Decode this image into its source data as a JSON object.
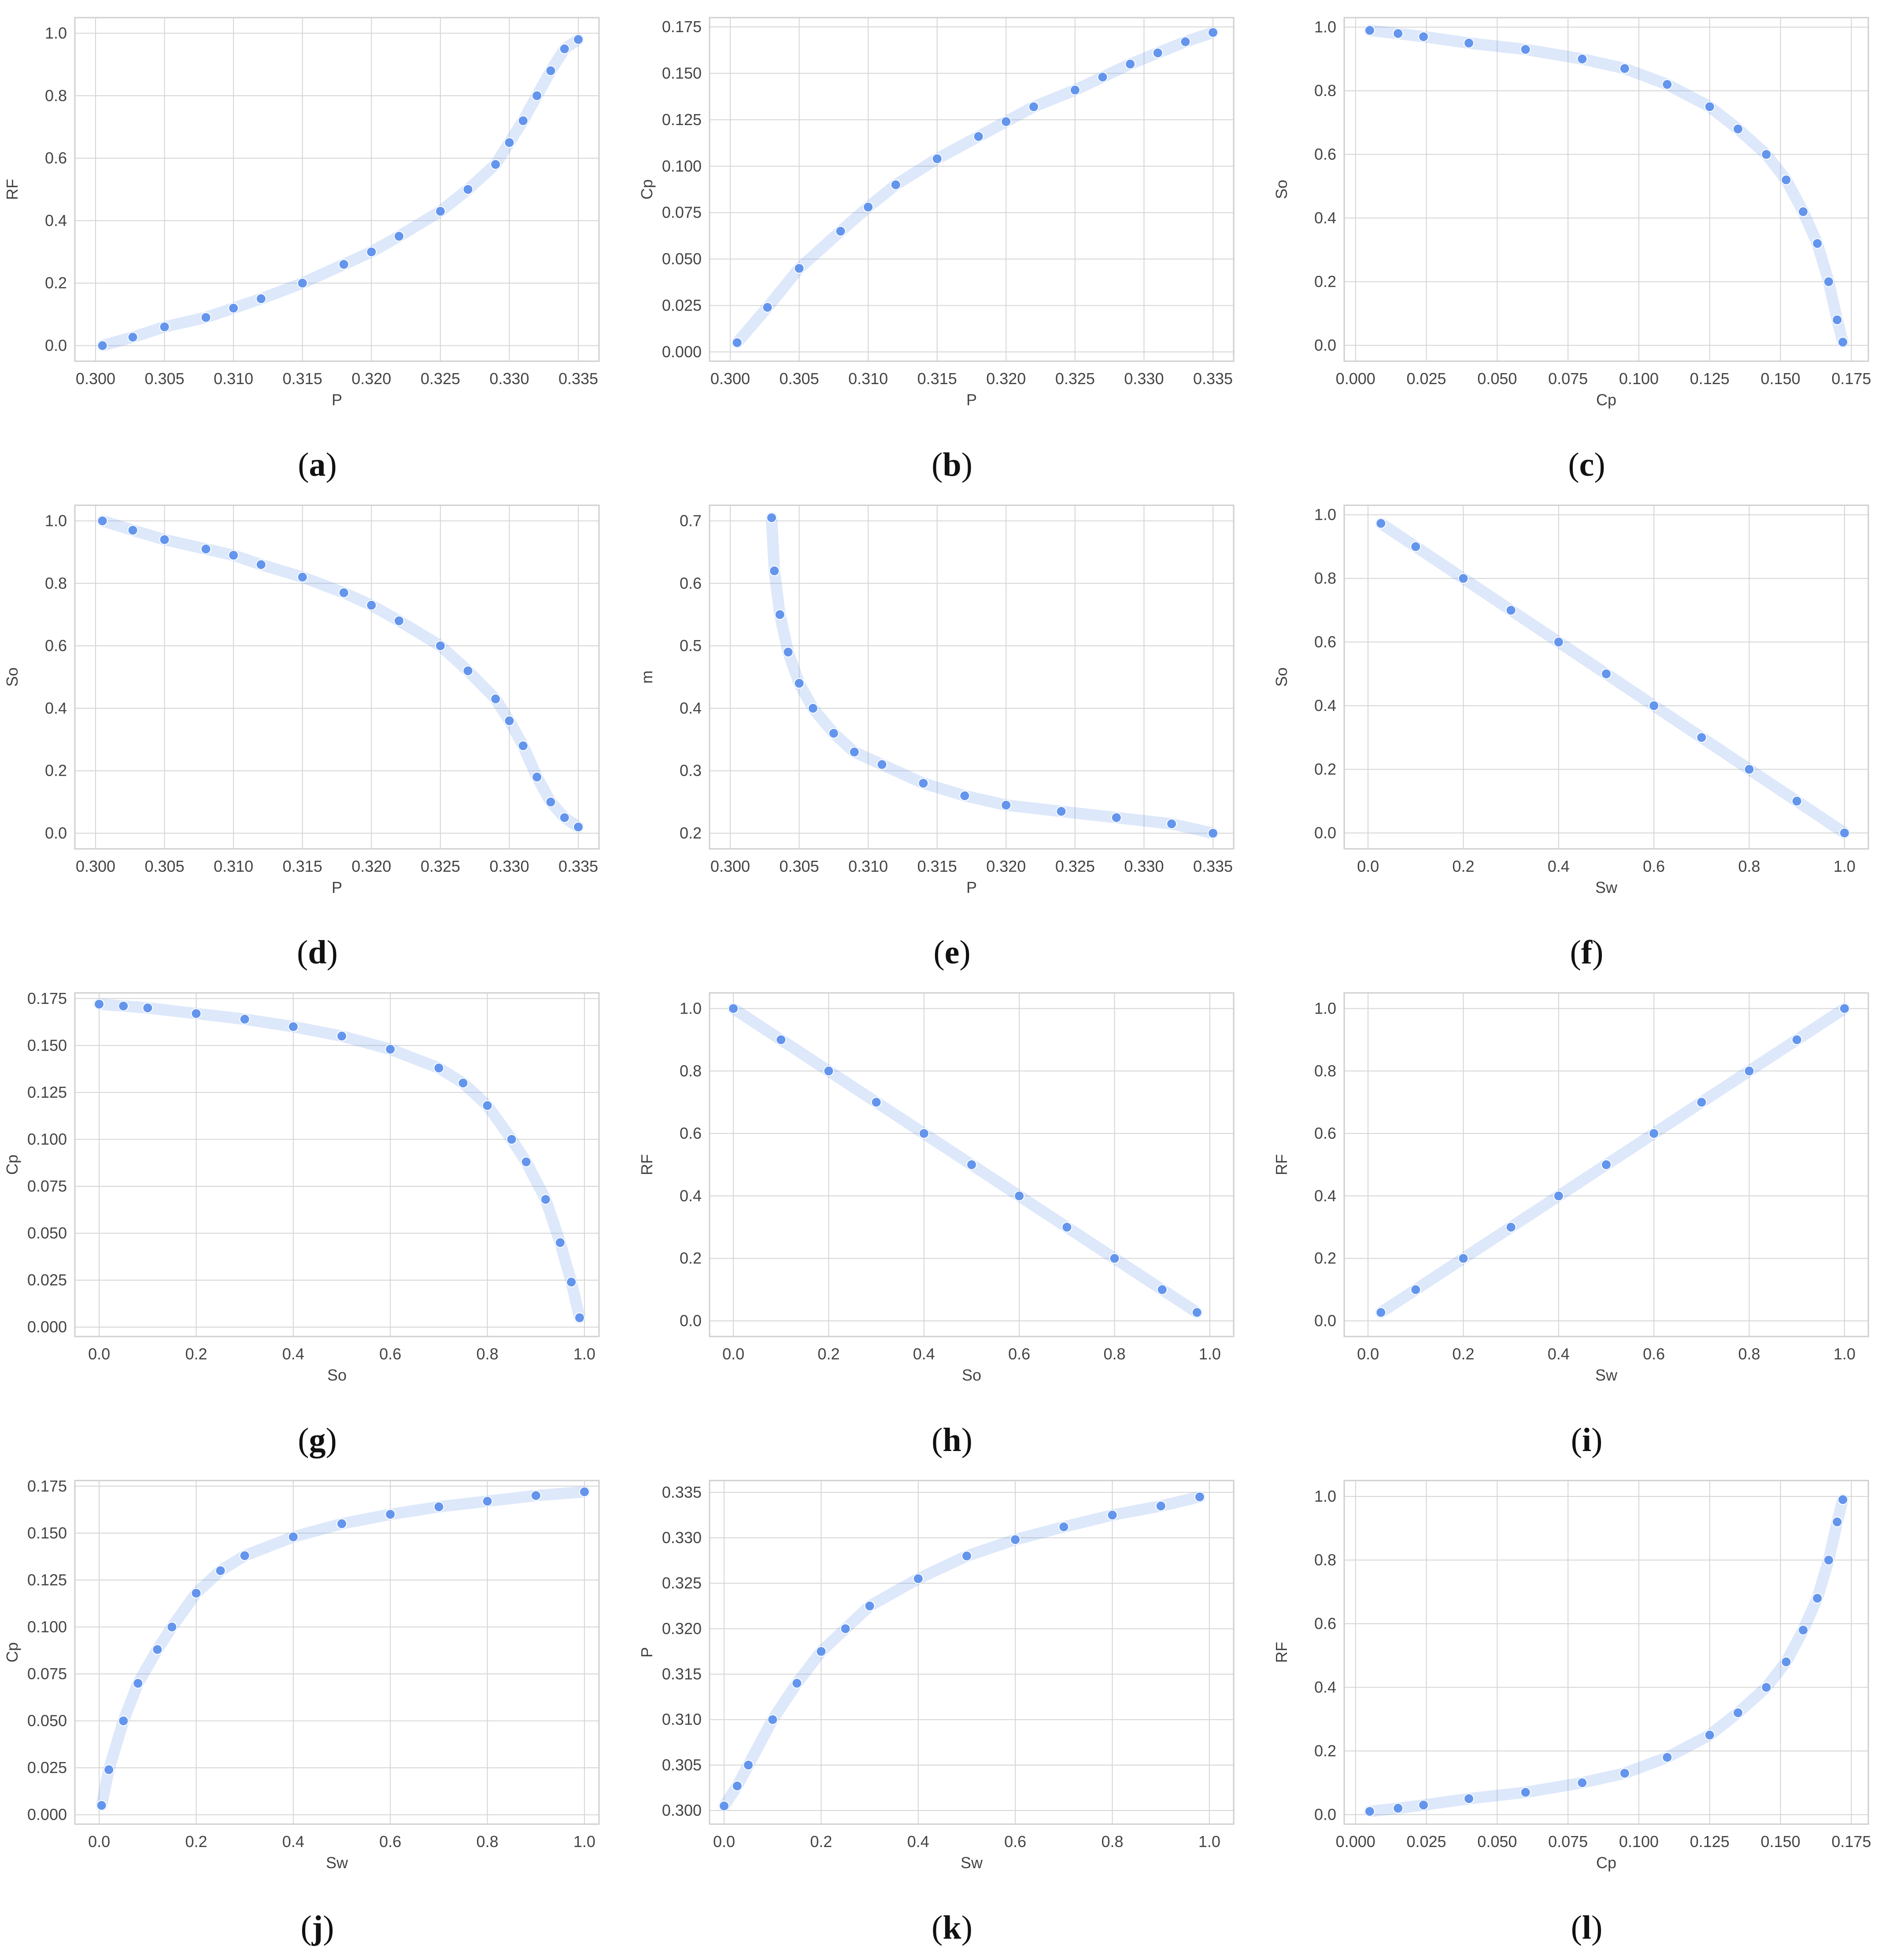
{
  "style": {
    "marker_color": "#6495ED",
    "grid_color": "#d5d5d5",
    "frame_color": "#cfcfcf",
    "text_color": "#444444"
  },
  "chart_data": [
    {
      "id": "a",
      "label_letter": "a",
      "type": "scatter",
      "xlabel": "P",
      "ylabel": "RF",
      "xlim": [
        0.2985,
        0.3365
      ],
      "ylim": [
        -0.05,
        1.05
      ],
      "xticks": [
        "0.300",
        "0.305",
        "0.310",
        "0.315",
        "0.320",
        "0.325",
        "0.330",
        "0.335"
      ],
      "yticks": [
        "0.0",
        "0.2",
        "0.4",
        "0.6",
        "0.8",
        "1.0"
      ],
      "x": [
        0.3005,
        0.3027,
        0.305,
        0.308,
        0.31,
        0.312,
        0.315,
        0.318,
        0.32,
        0.322,
        0.325,
        0.327,
        0.329,
        0.33,
        0.331,
        0.332,
        0.333,
        0.334,
        0.335
      ],
      "y": [
        0.0,
        0.027,
        0.06,
        0.09,
        0.12,
        0.15,
        0.2,
        0.26,
        0.3,
        0.35,
        0.43,
        0.5,
        0.58,
        0.65,
        0.72,
        0.8,
        0.88,
        0.95,
        0.98
      ]
    },
    {
      "id": "b",
      "label_letter": "b",
      "type": "scatter",
      "xlabel": "P",
      "ylabel": "Cp",
      "xlim": [
        0.2985,
        0.3365
      ],
      "ylim": [
        -0.005,
        0.18
      ],
      "xticks": [
        "0.300",
        "0.305",
        "0.310",
        "0.315",
        "0.320",
        "0.325",
        "0.330",
        "0.335"
      ],
      "yticks": [
        "0.000",
        "0.025",
        "0.050",
        "0.075",
        "0.100",
        "0.125",
        "0.150",
        "0.175"
      ],
      "x": [
        0.3005,
        0.3027,
        0.305,
        0.308,
        0.31,
        0.312,
        0.315,
        0.318,
        0.32,
        0.322,
        0.325,
        0.327,
        0.329,
        0.331,
        0.333,
        0.335
      ],
      "y": [
        0.005,
        0.024,
        0.045,
        0.065,
        0.078,
        0.09,
        0.104,
        0.116,
        0.124,
        0.132,
        0.141,
        0.148,
        0.155,
        0.161,
        0.167,
        0.172
      ]
    },
    {
      "id": "c",
      "label_letter": "c",
      "type": "scatter",
      "xlabel": "Cp",
      "ylabel": "So",
      "xlim": [
        -0.004,
        0.181
      ],
      "ylim": [
        -0.05,
        1.03
      ],
      "xticks": [
        "0.000",
        "0.025",
        "0.050",
        "0.075",
        "0.100",
        "0.125",
        "0.150",
        "0.175"
      ],
      "yticks": [
        "0.0",
        "0.2",
        "0.4",
        "0.6",
        "0.8",
        "1.0"
      ],
      "x": [
        0.005,
        0.015,
        0.024,
        0.04,
        0.06,
        0.08,
        0.095,
        0.11,
        0.125,
        0.135,
        0.145,
        0.152,
        0.158,
        0.163,
        0.167,
        0.17,
        0.172
      ],
      "y": [
        0.99,
        0.98,
        0.97,
        0.95,
        0.93,
        0.9,
        0.87,
        0.82,
        0.75,
        0.68,
        0.6,
        0.52,
        0.42,
        0.32,
        0.2,
        0.08,
        0.01
      ]
    },
    {
      "id": "d",
      "label_letter": "d",
      "type": "scatter",
      "xlabel": "P",
      "ylabel": "So",
      "xlim": [
        0.2985,
        0.3365
      ],
      "ylim": [
        -0.05,
        1.05
      ],
      "xticks": [
        "0.300",
        "0.305",
        "0.310",
        "0.315",
        "0.320",
        "0.325",
        "0.330",
        "0.335"
      ],
      "yticks": [
        "0.0",
        "0.2",
        "0.4",
        "0.6",
        "0.8",
        "1.0"
      ],
      "x": [
        0.3005,
        0.3027,
        0.305,
        0.308,
        0.31,
        0.312,
        0.315,
        0.318,
        0.32,
        0.322,
        0.325,
        0.327,
        0.329,
        0.33,
        0.331,
        0.332,
        0.333,
        0.334,
        0.335
      ],
      "y": [
        1.0,
        0.97,
        0.94,
        0.91,
        0.89,
        0.86,
        0.82,
        0.77,
        0.73,
        0.68,
        0.6,
        0.52,
        0.43,
        0.36,
        0.28,
        0.18,
        0.1,
        0.05,
        0.02
      ]
    },
    {
      "id": "e",
      "label_letter": "e",
      "type": "scatter",
      "xlabel": "P",
      "ylabel": "m",
      "xlim": [
        0.2985,
        0.3365
      ],
      "ylim": [
        0.175,
        0.725
      ],
      "xticks": [
        "0.300",
        "0.305",
        "0.310",
        "0.315",
        "0.320",
        "0.325",
        "0.330",
        "0.335"
      ],
      "yticks": [
        "0.2",
        "0.3",
        "0.4",
        "0.5",
        "0.6",
        "0.7"
      ],
      "x": [
        0.303,
        0.3032,
        0.3036,
        0.3042,
        0.305,
        0.306,
        0.3075,
        0.309,
        0.311,
        0.314,
        0.317,
        0.32,
        0.324,
        0.328,
        0.332,
        0.335
      ],
      "y": [
        0.705,
        0.62,
        0.55,
        0.49,
        0.44,
        0.4,
        0.36,
        0.33,
        0.31,
        0.28,
        0.26,
        0.245,
        0.235,
        0.225,
        0.215,
        0.2
      ]
    },
    {
      "id": "f",
      "label_letter": "f",
      "type": "scatter",
      "xlabel": "Sw",
      "ylabel": "So",
      "xlim": [
        -0.05,
        1.05
      ],
      "ylim": [
        -0.05,
        1.03
      ],
      "xticks": [
        "0.0",
        "0.2",
        "0.4",
        "0.6",
        "0.8",
        "1.0"
      ],
      "yticks": [
        "0.0",
        "0.2",
        "0.4",
        "0.6",
        "0.8",
        "1.0"
      ],
      "x": [
        0.027,
        0.1,
        0.2,
        0.3,
        0.4,
        0.5,
        0.6,
        0.7,
        0.8,
        0.9,
        1.0
      ],
      "y": [
        0.973,
        0.9,
        0.8,
        0.7,
        0.6,
        0.5,
        0.4,
        0.3,
        0.2,
        0.1,
        0.0
      ]
    },
    {
      "id": "g",
      "label_letter": "g",
      "type": "scatter",
      "xlabel": "So",
      "ylabel": "Cp",
      "xlim": [
        -0.05,
        1.03
      ],
      "ylim": [
        -0.005,
        0.178
      ],
      "xticks": [
        "0.0",
        "0.2",
        "0.4",
        "0.6",
        "0.8",
        "1.0"
      ],
      "yticks": [
        "0.000",
        "0.025",
        "0.050",
        "0.075",
        "0.100",
        "0.125",
        "0.150",
        "0.175"
      ],
      "x": [
        0.0,
        0.05,
        0.1,
        0.2,
        0.3,
        0.4,
        0.5,
        0.6,
        0.7,
        0.75,
        0.8,
        0.85,
        0.88,
        0.92,
        0.95,
        0.973,
        0.99
      ],
      "y": [
        0.172,
        0.171,
        0.17,
        0.167,
        0.164,
        0.16,
        0.155,
        0.148,
        0.138,
        0.13,
        0.118,
        0.1,
        0.088,
        0.068,
        0.045,
        0.024,
        0.005
      ]
    },
    {
      "id": "h",
      "label_letter": "h",
      "type": "scatter",
      "xlabel": "So",
      "ylabel": "RF",
      "xlim": [
        -0.05,
        1.05
      ],
      "ylim": [
        -0.05,
        1.05
      ],
      "xticks": [
        "0.0",
        "0.2",
        "0.4",
        "0.6",
        "0.8",
        "1.0"
      ],
      "yticks": [
        "0.0",
        "0.2",
        "0.4",
        "0.6",
        "0.8",
        "1.0"
      ],
      "x": [
        0.0,
        0.1,
        0.2,
        0.3,
        0.4,
        0.5,
        0.6,
        0.7,
        0.8,
        0.9,
        0.973
      ],
      "y": [
        1.0,
        0.9,
        0.8,
        0.7,
        0.6,
        0.5,
        0.4,
        0.3,
        0.2,
        0.1,
        0.027
      ]
    },
    {
      "id": "i",
      "label_letter": "i",
      "type": "scatter",
      "xlabel": "Sw",
      "ylabel": "RF",
      "xlim": [
        -0.05,
        1.05
      ],
      "ylim": [
        -0.05,
        1.05
      ],
      "xticks": [
        "0.0",
        "0.2",
        "0.4",
        "0.6",
        "0.8",
        "1.0"
      ],
      "yticks": [
        "0.0",
        "0.2",
        "0.4",
        "0.6",
        "0.8",
        "1.0"
      ],
      "x": [
        0.027,
        0.1,
        0.2,
        0.3,
        0.4,
        0.5,
        0.6,
        0.7,
        0.8,
        0.9,
        1.0
      ],
      "y": [
        0.027,
        0.1,
        0.2,
        0.3,
        0.4,
        0.5,
        0.6,
        0.7,
        0.8,
        0.9,
        1.0
      ]
    },
    {
      "id": "j",
      "label_letter": "j",
      "type": "scatter",
      "xlabel": "Sw",
      "ylabel": "Cp",
      "xlim": [
        -0.05,
        1.03
      ],
      "ylim": [
        -0.005,
        0.178
      ],
      "xticks": [
        "0.0",
        "0.2",
        "0.4",
        "0.6",
        "0.8",
        "1.0"
      ],
      "yticks": [
        "0.000",
        "0.025",
        "0.050",
        "0.075",
        "0.100",
        "0.125",
        "0.150",
        "0.175"
      ],
      "x": [
        0.005,
        0.02,
        0.05,
        0.08,
        0.12,
        0.15,
        0.2,
        0.25,
        0.3,
        0.4,
        0.5,
        0.6,
        0.7,
        0.8,
        0.9,
        1.0
      ],
      "y": [
        0.005,
        0.024,
        0.05,
        0.07,
        0.088,
        0.1,
        0.118,
        0.13,
        0.138,
        0.148,
        0.155,
        0.16,
        0.164,
        0.167,
        0.17,
        0.172
      ]
    },
    {
      "id": "k",
      "label_letter": "k",
      "type": "scatter",
      "xlabel": "Sw",
      "ylabel": "P",
      "xlim": [
        -0.03,
        1.05
      ],
      "ylim": [
        0.2985,
        0.3363
      ],
      "xticks": [
        "0.0",
        "0.2",
        "0.4",
        "0.6",
        "0.8",
        "1.0"
      ],
      "yticks": [
        "0.300",
        "0.305",
        "0.310",
        "0.315",
        "0.320",
        "0.325",
        "0.330",
        "0.335"
      ],
      "x": [
        0.0,
        0.027,
        0.05,
        0.1,
        0.15,
        0.2,
        0.25,
        0.3,
        0.4,
        0.5,
        0.6,
        0.7,
        0.8,
        0.9,
        0.98
      ],
      "y": [
        0.3005,
        0.3027,
        0.305,
        0.31,
        0.314,
        0.3175,
        0.32,
        0.3225,
        0.3255,
        0.328,
        0.3298,
        0.3312,
        0.3325,
        0.3335,
        0.3345
      ]
    },
    {
      "id": "l",
      "label_letter": "l",
      "type": "scatter",
      "xlabel": "Cp",
      "ylabel": "RF",
      "xlim": [
        -0.004,
        0.181
      ],
      "ylim": [
        -0.03,
        1.05
      ],
      "xticks": [
        "0.000",
        "0.025",
        "0.050",
        "0.075",
        "0.100",
        "0.125",
        "0.150",
        "0.175"
      ],
      "yticks": [
        "0.0",
        "0.2",
        "0.4",
        "0.6",
        "0.8",
        "1.0"
      ],
      "x": [
        0.005,
        0.015,
        0.024,
        0.04,
        0.06,
        0.08,
        0.095,
        0.11,
        0.125,
        0.135,
        0.145,
        0.152,
        0.158,
        0.163,
        0.167,
        0.17,
        0.172
      ],
      "y": [
        0.01,
        0.02,
        0.03,
        0.05,
        0.07,
        0.1,
        0.13,
        0.18,
        0.25,
        0.32,
        0.4,
        0.48,
        0.58,
        0.68,
        0.8,
        0.92,
        0.99
      ]
    }
  ]
}
